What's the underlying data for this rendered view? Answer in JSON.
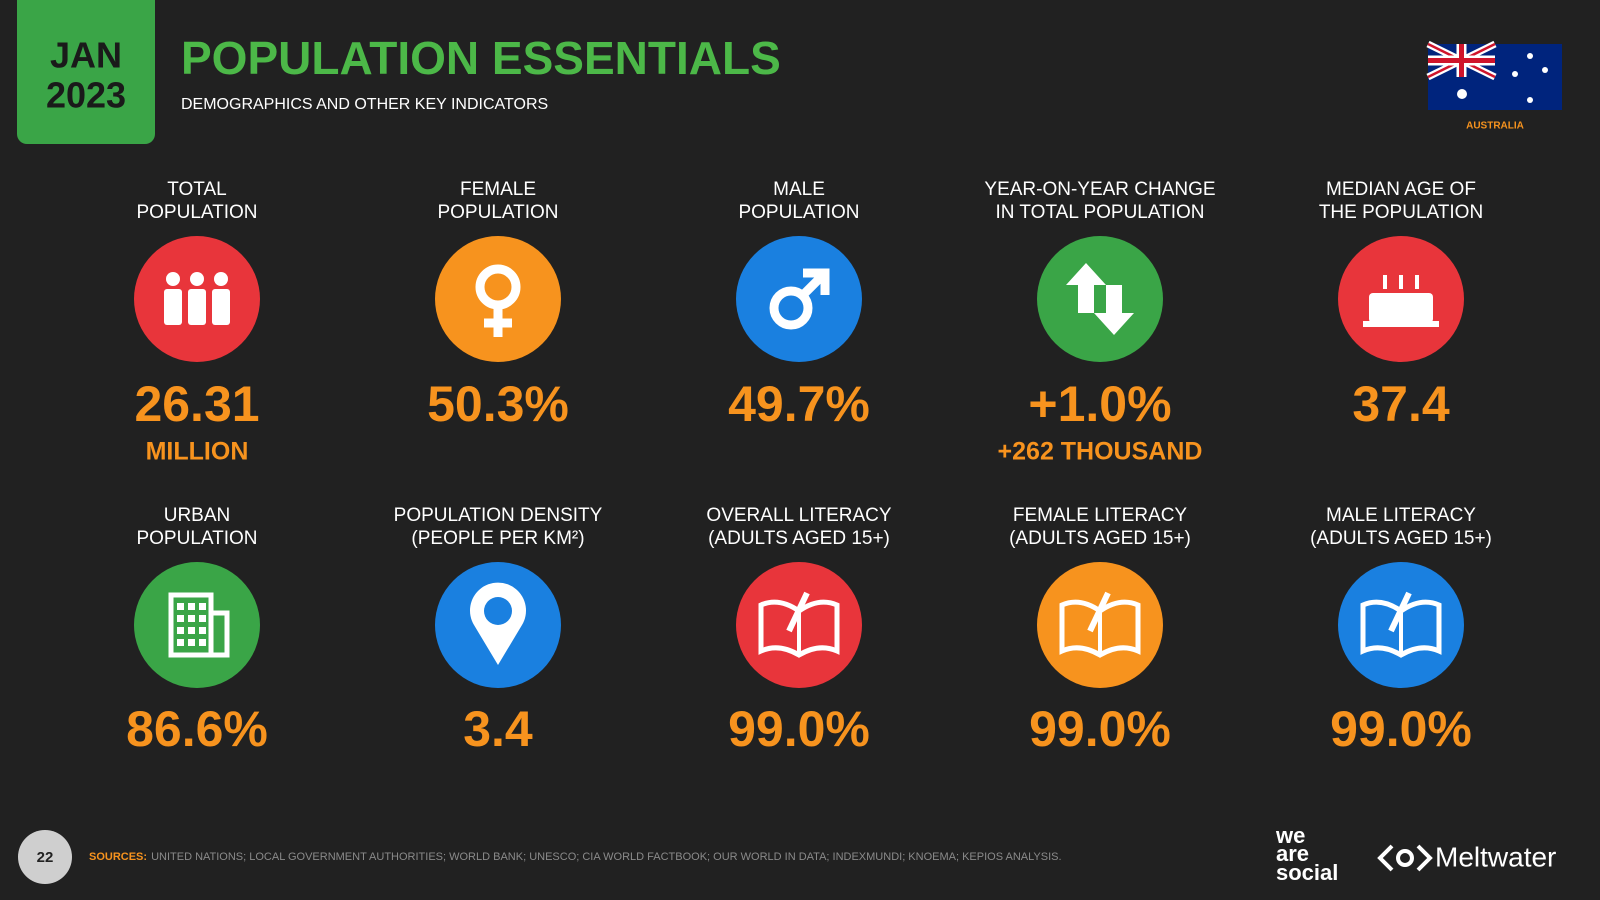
{
  "header": {
    "date_month": "JAN",
    "date_year": "2023",
    "title": "POPULATION ESSENTIALS",
    "subtitle": "DEMOGRAPHICS AND OTHER KEY INDICATORS",
    "country": "AUSTRALIA"
  },
  "stats": [
    {
      "label": [
        "TOTAL",
        "POPULATION"
      ],
      "value": "26.31",
      "sub": "MILLION",
      "color": "#e8353b"
    },
    {
      "label": [
        "FEMALE",
        "POPULATION"
      ],
      "value": "50.3%",
      "color": "#f7931e"
    },
    {
      "label": [
        "MALE",
        "POPULATION"
      ],
      "value": "49.7%",
      "color": "#1a80e0"
    },
    {
      "label": [
        "YEAR-ON-YEAR CHANGE",
        "IN TOTAL POPULATION"
      ],
      "value": "+1.0%",
      "sub": "+262 THOUSAND",
      "color": "#3aa547"
    },
    {
      "label": [
        "MEDIAN AGE OF",
        "THE POPULATION"
      ],
      "value": "37.4",
      "color": "#e8353b"
    },
    {
      "label": [
        "URBAN",
        "POPULATION"
      ],
      "value": "86.6%",
      "color": "#3aa547"
    },
    {
      "label": [
        "POPULATION DENSITY",
        "(PEOPLE PER KM²)"
      ],
      "value": "3.4",
      "color": "#1a80e0"
    },
    {
      "label": [
        "OVERALL LITERACY",
        "(ADULTS AGED 15+)"
      ],
      "value": "99.0%",
      "color": "#e8353b"
    },
    {
      "label": [
        "FEMALE LITERACY",
        "(ADULTS AGED 15+)"
      ],
      "value": "99.0%",
      "color": "#f7931e"
    },
    {
      "label": [
        "MALE LITERACY",
        "(ADULTS AGED 15+)"
      ],
      "value": "99.0%",
      "color": "#1a80e0"
    }
  ],
  "footer": {
    "page": "22",
    "sources_label": "SOURCES:",
    "sources": "UNITED NATIONS; LOCAL GOVERNMENT AUTHORITIES; WORLD BANK; UNESCO; CIA WORLD FACTBOOK; OUR WORLD IN DATA; INDEXMUNDI; KNOEMA; KEPIOS ANALYSIS.",
    "brand1": [
      "we",
      "are",
      "social"
    ],
    "brand2": "Meltwater"
  }
}
